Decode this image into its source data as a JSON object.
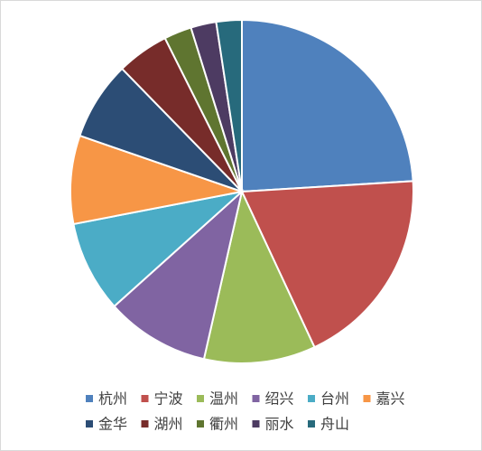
{
  "chart_data": {
    "type": "pie",
    "categories": [
      "杭州",
      "宁波",
      "温州",
      "绍兴",
      "台州",
      "嘉兴",
      "金华",
      "湖州",
      "衢州",
      "丽水",
      "舟山"
    ],
    "values": [
      24,
      19,
      10.5,
      9.8,
      8.6,
      8.3,
      7.4,
      4.9,
      2.6,
      2.4,
      2.4
    ],
    "colors": [
      "#4f81bd",
      "#c0504d",
      "#9bbb59",
      "#8064a2",
      "#4bacc6",
      "#f79646",
      "#2c4d75",
      "#772c2a",
      "#5f7530",
      "#4d3b62",
      "#276a7c"
    ],
    "legend": "bottom"
  }
}
